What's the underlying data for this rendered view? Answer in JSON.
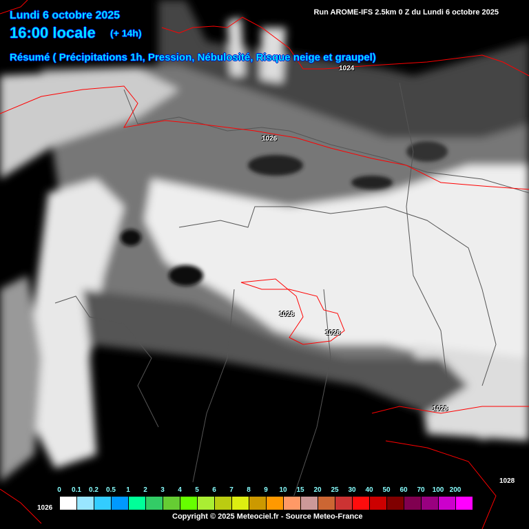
{
  "header": {
    "date": "Lundi 6 octobre 2025",
    "time": "16:00 locale",
    "offset": "(+ 14h)",
    "summary": "Résumé ( Précipitations 1h, Pression, Nébulosité, Risque neige et graupel)",
    "run": "Run AROME-IFS 2.5km 0 Z du Lundi 6 octobre 2025"
  },
  "pressure_labels": [
    "1024",
    "1026",
    "1028",
    "1028",
    "1028",
    "1028",
    "1026"
  ],
  "legend": {
    "labels": [
      "0",
      "0.1",
      "0.2",
      "0.5",
      "1",
      "2",
      "3",
      "4",
      "5",
      "6",
      "7",
      "8",
      "9",
      "10",
      "15",
      "20",
      "25",
      "30",
      "40",
      "50",
      "60",
      "70",
      "100",
      "200"
    ],
    "colors": [
      "#ffffff",
      "#99e6ff",
      "#33ccff",
      "#0099ff",
      "#00ff99",
      "#33cc66",
      "#66cc33",
      "#66ff00",
      "#aaee33",
      "#bbcc11",
      "#ddee11",
      "#cc9900",
      "#ff9900",
      "#ff9966",
      "#cc9999",
      "#cc6633",
      "#cc3333",
      "#ff0d0d",
      "#cc0000",
      "#800000",
      "#800050",
      "#990080",
      "#cc00cc",
      "#ff00ff"
    ]
  },
  "copyright": "Copyright © 2025 Meteociel.fr - Source Meteo-France",
  "colors": {
    "isobar": "#ff0000",
    "header_text": "#00e5ff",
    "border": "#555555"
  }
}
